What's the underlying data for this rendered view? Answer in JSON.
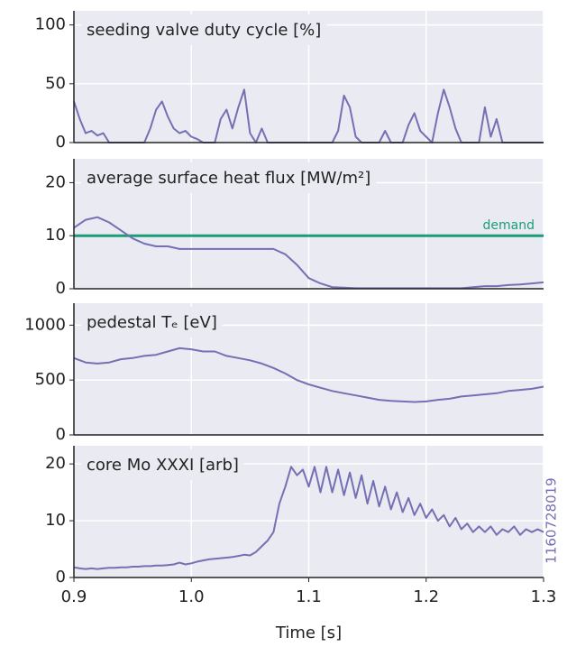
{
  "chart_data": [
    {
      "type": "line",
      "title": "seeding valve duty cycle [%]",
      "color": "#7570b3",
      "grid": true,
      "xlim": [
        0.9,
        1.3
      ],
      "xticks": [
        0.9,
        {
          "value": 1.0,
          "label": "1.0"
        },
        1.1,
        1.2,
        1.3
      ],
      "ylim": [
        0,
        112
      ],
      "yticks": [
        0,
        50,
        100
      ],
      "x": [
        0.9,
        0.905,
        0.91,
        0.915,
        0.92,
        0.925,
        0.93,
        0.935,
        0.94,
        0.945,
        0.95,
        0.955,
        0.96,
        0.965,
        0.97,
        0.975,
        0.98,
        0.985,
        0.99,
        0.995,
        1.0,
        1.005,
        1.01,
        1.015,
        1.02,
        1.025,
        1.03,
        1.035,
        1.04,
        1.045,
        1.05,
        1.055,
        1.06,
        1.065,
        1.07,
        1.075,
        1.08,
        1.085,
        1.09,
        1.095,
        1.1,
        1.105,
        1.11,
        1.115,
        1.12,
        1.125,
        1.13,
        1.135,
        1.14,
        1.145,
        1.15,
        1.155,
        1.16,
        1.165,
        1.17,
        1.175,
        1.18,
        1.185,
        1.19,
        1.195,
        1.2,
        1.205,
        1.21,
        1.215,
        1.22,
        1.225,
        1.23,
        1.235,
        1.24,
        1.245,
        1.25,
        1.255,
        1.26,
        1.265,
        1.27,
        1.275,
        1.28,
        1.285,
        1.29,
        1.295,
        1.3
      ],
      "values": [
        35,
        20,
        8,
        10,
        6,
        8,
        0,
        0,
        0,
        0,
        0,
        0,
        0,
        12,
        28,
        35,
        22,
        12,
        8,
        10,
        5,
        3,
        0,
        0,
        0,
        20,
        28,
        12,
        30,
        45,
        8,
        0,
        12,
        0,
        0,
        0,
        0,
        0,
        0,
        0,
        0,
        0,
        0,
        0,
        0,
        10,
        40,
        30,
        5,
        0,
        0,
        0,
        0,
        10,
        0,
        0,
        0,
        15,
        25,
        10,
        5,
        0,
        25,
        45,
        30,
        12,
        0,
        0,
        0,
        0,
        30,
        5,
        20,
        0,
        0,
        0,
        0,
        0,
        0,
        0,
        0
      ]
    },
    {
      "type": "line",
      "title": "average surface heat flux [MW/m²]",
      "color": "#7570b3",
      "grid": true,
      "xlim": [
        0.9,
        1.3
      ],
      "xticks": [
        0.9,
        {
          "value": 1.0,
          "label": "1.0"
        },
        1.1,
        1.2,
        1.3
      ],
      "ylim": [
        0,
        24.5
      ],
      "yticks": [
        0,
        10,
        20
      ],
      "reference_line": {
        "value": 10,
        "label": "demand",
        "color": "#1b9e77"
      },
      "x": [
        0.9,
        0.91,
        0.92,
        0.93,
        0.94,
        0.95,
        0.96,
        0.97,
        0.98,
        0.99,
        1.0,
        1.01,
        1.02,
        1.03,
        1.04,
        1.05,
        1.06,
        1.07,
        1.08,
        1.09,
        1.1,
        1.11,
        1.12,
        1.13,
        1.14,
        1.15,
        1.16,
        1.17,
        1.18,
        1.19,
        1.2,
        1.21,
        1.22,
        1.23,
        1.24,
        1.25,
        1.26,
        1.27,
        1.28,
        1.29,
        1.3
      ],
      "values": [
        11.5,
        13,
        13.5,
        12.5,
        11,
        9.5,
        8.5,
        8,
        8,
        7.5,
        7.5,
        7.5,
        7.5,
        7.5,
        7.5,
        7.5,
        7.5,
        7.5,
        6.5,
        4.5,
        2,
        1,
        0.3,
        0.2,
        0.1,
        0.1,
        0.1,
        0.1,
        0.1,
        0.1,
        0.1,
        0.1,
        0.1,
        0.1,
        0.3,
        0.5,
        0.5,
        0.7,
        0.8,
        1,
        1.2
      ]
    },
    {
      "type": "line",
      "title": "pedestal Tₑ [eV]",
      "color": "#7570b3",
      "grid": true,
      "xlim": [
        0.9,
        1.3
      ],
      "xticks": [
        0.9,
        {
          "value": 1.0,
          "label": "1.0"
        },
        1.1,
        1.2,
        1.3
      ],
      "ylim": [
        0,
        1200
      ],
      "yticks": [
        0,
        500,
        1000
      ],
      "x": [
        0.9,
        0.91,
        0.92,
        0.93,
        0.94,
        0.95,
        0.96,
        0.97,
        0.98,
        0.99,
        1.0,
        1.01,
        1.02,
        1.03,
        1.04,
        1.05,
        1.06,
        1.07,
        1.08,
        1.09,
        1.1,
        1.11,
        1.12,
        1.13,
        1.14,
        1.15,
        1.16,
        1.17,
        1.18,
        1.19,
        1.2,
        1.21,
        1.22,
        1.23,
        1.24,
        1.25,
        1.26,
        1.27,
        1.28,
        1.29,
        1.3
      ],
      "values": [
        700,
        660,
        650,
        660,
        690,
        700,
        720,
        730,
        760,
        790,
        780,
        760,
        760,
        720,
        700,
        680,
        650,
        610,
        560,
        500,
        460,
        430,
        400,
        380,
        360,
        340,
        320,
        310,
        305,
        300,
        305,
        320,
        330,
        350,
        360,
        370,
        380,
        400,
        410,
        420,
        440
      ]
    },
    {
      "type": "line",
      "title": "core Mo XXXI [arb]",
      "color": "#7570b3",
      "grid": true,
      "xlim": [
        0.9,
        1.3
      ],
      "xticks": [
        0.9,
        {
          "value": 1.0,
          "label": "1.0"
        },
        1.1,
        1.2,
        1.3
      ],
      "ylim": [
        0,
        23.2
      ],
      "yticks": [
        0,
        10,
        20
      ],
      "xlabel": "Time [s]",
      "annotation": "1160728019",
      "x": [
        0.9,
        0.905,
        0.91,
        0.915,
        0.92,
        0.925,
        0.93,
        0.935,
        0.94,
        0.945,
        0.95,
        0.955,
        0.96,
        0.965,
        0.97,
        0.975,
        0.98,
        0.985,
        0.99,
        0.995,
        1.0,
        1.005,
        1.01,
        1.015,
        1.02,
        1.025,
        1.03,
        1.035,
        1.04,
        1.045,
        1.05,
        1.055,
        1.06,
        1.065,
        1.07,
        1.075,
        1.08,
        1.085,
        1.09,
        1.095,
        1.1,
        1.105,
        1.11,
        1.115,
        1.12,
        1.125,
        1.13,
        1.135,
        1.14,
        1.145,
        1.15,
        1.155,
        1.16,
        1.165,
        1.17,
        1.175,
        1.18,
        1.185,
        1.19,
        1.195,
        1.2,
        1.205,
        1.21,
        1.215,
        1.22,
        1.225,
        1.23,
        1.235,
        1.24,
        1.245,
        1.25,
        1.255,
        1.26,
        1.265,
        1.27,
        1.275,
        1.28,
        1.285,
        1.29,
        1.295,
        1.3
      ],
      "values": [
        1.8,
        1.6,
        1.5,
        1.6,
        1.5,
        1.6,
        1.7,
        1.7,
        1.8,
        1.8,
        1.9,
        1.9,
        2.0,
        2.0,
        2.1,
        2.1,
        2.2,
        2.3,
        2.6,
        2.3,
        2.5,
        2.8,
        3.0,
        3.2,
        3.3,
        3.4,
        3.5,
        3.6,
        3.8,
        4.0,
        3.9,
        4.5,
        5.5,
        6.5,
        8,
        13,
        16,
        19.5,
        18,
        19,
        16,
        19.5,
        15,
        19.5,
        15,
        19,
        14.5,
        18.5,
        14,
        18,
        13,
        17,
        12.5,
        16,
        12,
        15,
        11.5,
        14,
        11,
        13,
        10.5,
        12,
        10,
        11,
        9,
        10.5,
        8.5,
        9.5,
        8,
        9,
        8,
        9,
        7.5,
        8.5,
        8,
        9,
        7.5,
        8.5,
        8,
        8.5,
        8
      ]
    }
  ]
}
